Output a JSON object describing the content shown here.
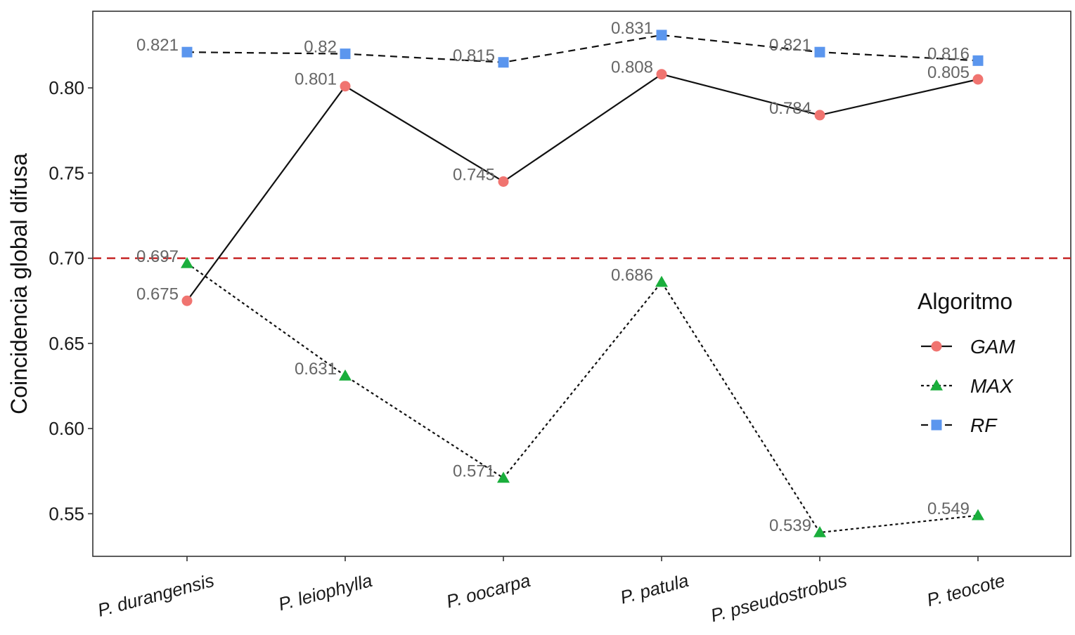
{
  "chart_data": {
    "type": "line",
    "categories": [
      "P. durangensis",
      "P. leiophylla",
      "P. oocarpa",
      "P. patula",
      "P. pseudostrobus",
      "P. teocote"
    ],
    "ylabel": "Coincidencia global difusa",
    "xlabel": "",
    "ylim": [
      0.525,
      0.845
    ],
    "yticks": [
      0.55,
      0.6,
      0.65,
      0.7,
      0.75,
      0.8
    ],
    "ytick_labels": [
      "0.55",
      "0.60",
      "0.65",
      "0.70",
      "0.75",
      "0.80"
    ],
    "grid": false,
    "reference_line": {
      "y": 0.7,
      "color": "#c62828",
      "style": "dashed"
    },
    "legend": {
      "title": "Algoritmo",
      "placement": "right"
    },
    "series": [
      {
        "name": "GAM",
        "values": [
          0.675,
          0.801,
          0.745,
          0.808,
          0.784,
          0.805
        ],
        "labels": [
          "0.675",
          "0.801",
          "0.745",
          "0.808",
          "0.784",
          "0.805"
        ],
        "color": "#f07470",
        "marker": "circle",
        "line": "solid"
      },
      {
        "name": "MAX",
        "values": [
          0.697,
          0.631,
          0.571,
          0.686,
          0.539,
          0.549
        ],
        "labels": [
          "0.697",
          "0.631",
          "0.571",
          "0.686",
          "0.539",
          "0.549"
        ],
        "color": "#1aae3c",
        "marker": "triangle",
        "line": "dotted"
      },
      {
        "name": "RF",
        "values": [
          0.821,
          0.82,
          0.815,
          0.831,
          0.821,
          0.816
        ],
        "labels": [
          "0.821",
          "0.82",
          "0.815",
          "0.831",
          "0.821",
          "0.816"
        ],
        "color": "#5b96ee",
        "marker": "square",
        "line": "dashed"
      }
    ]
  }
}
